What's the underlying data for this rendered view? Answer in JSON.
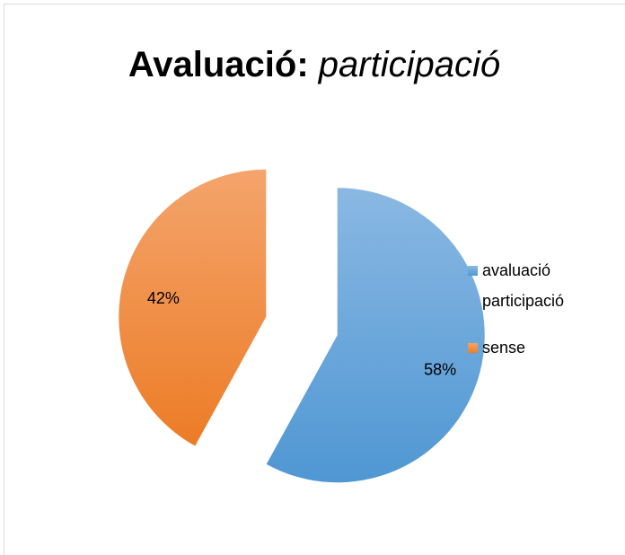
{
  "chart_data": {
    "type": "pie",
    "title_parts": [
      "Avaluació:",
      "participació"
    ],
    "categories": [
      "avaluació participació",
      "sense"
    ],
    "values": [
      58,
      42
    ],
    "value_labels": [
      "58%",
      "42%"
    ],
    "colors": [
      "#5b9bd5",
      "#ed7d31"
    ],
    "legend": "right"
  }
}
